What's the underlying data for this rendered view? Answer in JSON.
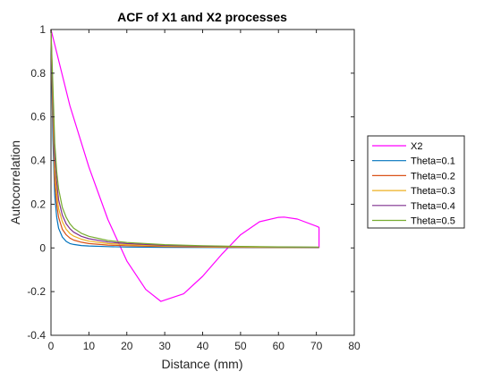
{
  "chart_data": {
    "type": "line",
    "title": "ACF of X1 and X2 processes",
    "xlabel": "Distance (mm)",
    "ylabel": "Autocorrelation",
    "xlim": [
      0,
      80
    ],
    "ylim": [
      -0.4,
      1
    ],
    "xticks": [
      "0",
      "10",
      "20",
      "30",
      "40",
      "50",
      "60",
      "70",
      "80"
    ],
    "yticks": [
      "-0.4",
      "-0.2",
      "0",
      "0.2",
      "0.4",
      "0.6",
      "0.8",
      "1"
    ],
    "grid": false,
    "legend_position": "outside-right",
    "series": [
      {
        "name": "X2",
        "color": "#FF00FF",
        "x": [
          0,
          5,
          10,
          15,
          20,
          25,
          29,
          35,
          40,
          45,
          50,
          55,
          60,
          61.5,
          65,
          70,
          70.7,
          70.7
        ],
        "y": [
          1.0,
          0.65,
          0.37,
          0.13,
          -0.06,
          -0.19,
          -0.245,
          -0.21,
          -0.13,
          -0.03,
          0.06,
          0.12,
          0.14,
          0.141,
          0.132,
          0.1,
          0.094,
          0.0
        ]
      },
      {
        "name": "Theta=0.1",
        "color": "#0072BD",
        "x": [
          0,
          0.5,
          1,
          1.5,
          2,
          3,
          4,
          5,
          6,
          8,
          10,
          15,
          20,
          30,
          40,
          50,
          60,
          70.7
        ],
        "y": [
          1.0,
          0.5,
          0.24,
          0.14,
          0.09,
          0.05,
          0.03,
          0.02,
          0.016,
          0.011,
          0.009,
          0.006,
          0.004,
          0.003,
          0.002,
          0.0015,
          0.001,
          0.001
        ]
      },
      {
        "name": "Theta=0.2",
        "color": "#D95319",
        "x": [
          0,
          0.5,
          1,
          1.5,
          2,
          3,
          4,
          5,
          6,
          8,
          10,
          15,
          20,
          30,
          40,
          50,
          60,
          70.7
        ],
        "y": [
          1.0,
          0.6,
          0.3,
          0.2,
          0.14,
          0.085,
          0.06,
          0.045,
          0.036,
          0.026,
          0.02,
          0.013,
          0.01,
          0.006,
          0.004,
          0.003,
          0.002,
          0.002
        ]
      },
      {
        "name": "Theta=0.3",
        "color": "#EDB120",
        "x": [
          0,
          0.5,
          1,
          1.5,
          2,
          3,
          4,
          5,
          6,
          8,
          10,
          15,
          20,
          30,
          40,
          50,
          60,
          70.7
        ],
        "y": [
          1.0,
          0.65,
          0.36,
          0.25,
          0.18,
          0.12,
          0.085,
          0.066,
          0.054,
          0.04,
          0.031,
          0.02,
          0.015,
          0.009,
          0.006,
          0.004,
          0.003,
          0.002
        ]
      },
      {
        "name": "Theta=0.4",
        "color": "#7E2F8E",
        "x": [
          0,
          0.5,
          1,
          1.5,
          2,
          3,
          4,
          5,
          6,
          8,
          10,
          15,
          20,
          30,
          40,
          50,
          60,
          70.7
        ],
        "y": [
          1.0,
          0.7,
          0.42,
          0.3,
          0.22,
          0.15,
          0.11,
          0.088,
          0.072,
          0.053,
          0.042,
          0.027,
          0.02,
          0.012,
          0.008,
          0.006,
          0.004,
          0.003
        ]
      },
      {
        "name": "Theta=0.5",
        "color": "#77AC30",
        "x": [
          0,
          0.5,
          1,
          1.5,
          2,
          3,
          4,
          5,
          6,
          8,
          10,
          15,
          20,
          30,
          40,
          50,
          60,
          70.7
        ],
        "y": [
          1.0,
          0.75,
          0.48,
          0.35,
          0.27,
          0.185,
          0.14,
          0.11,
          0.09,
          0.067,
          0.053,
          0.034,
          0.025,
          0.015,
          0.01,
          0.007,
          0.005,
          0.004
        ]
      }
    ]
  }
}
